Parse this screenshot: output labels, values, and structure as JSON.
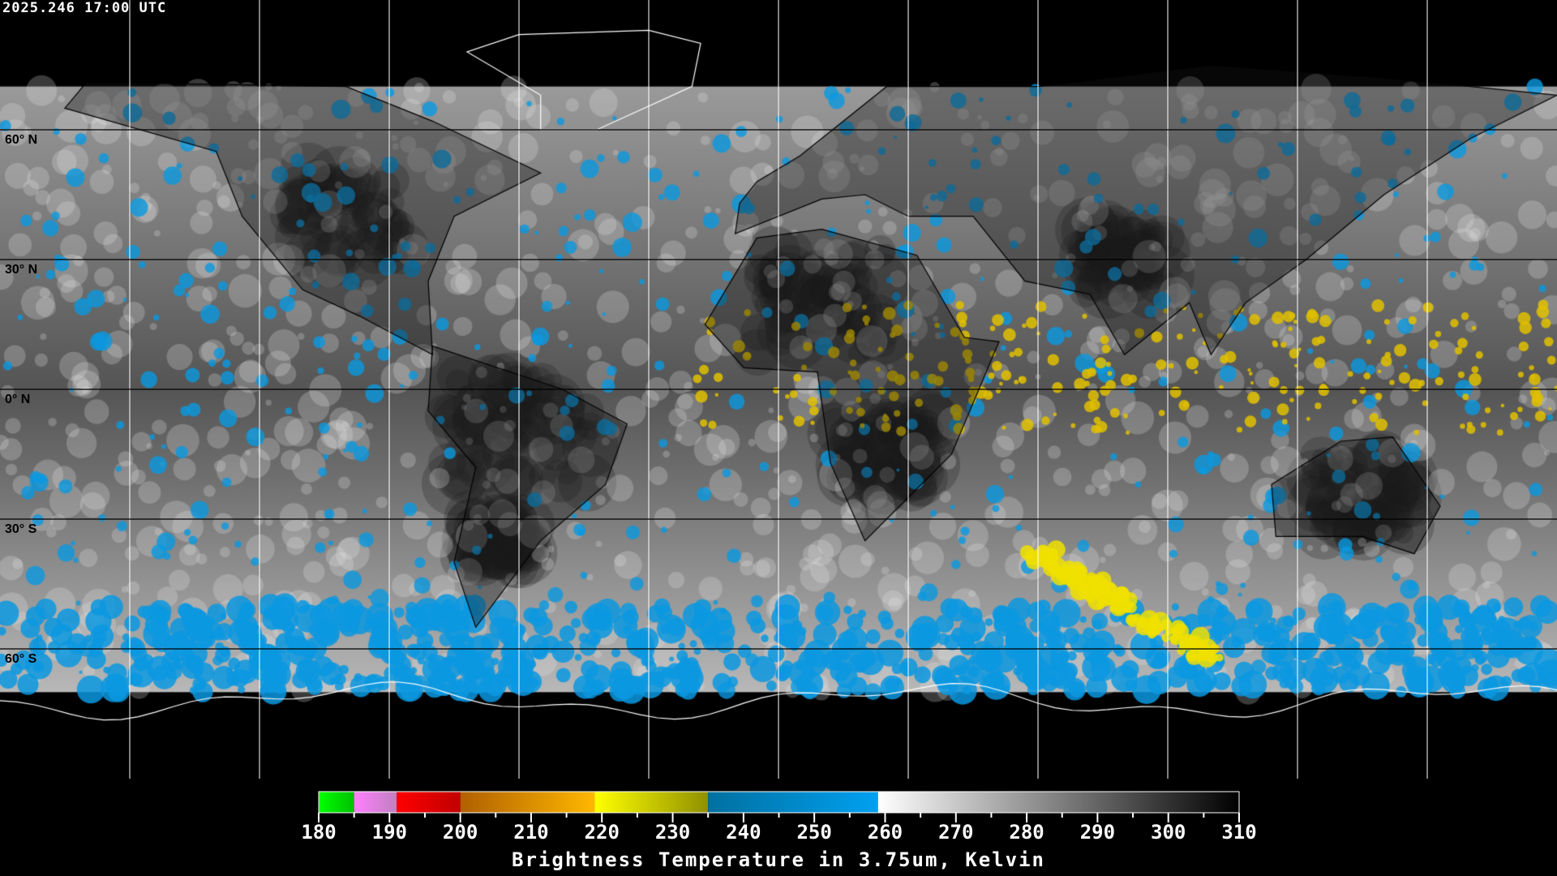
{
  "header": {
    "timestamp": "2025.246 17:00 UTC"
  },
  "map": {
    "projection": "equirectangular",
    "center_longitude": 0,
    "graticule_spacing_deg": 30,
    "lat_labels": [
      {
        "lat": 60,
        "text": "60° N"
      },
      {
        "lat": 30,
        "text": "30° N"
      },
      {
        "lat": 0,
        "text": "0° N"
      },
      {
        "lat": -30,
        "text": "30° S"
      },
      {
        "lat": -60,
        "text": "60° S"
      }
    ],
    "data_lat_range": [
      -70,
      70
    ]
  },
  "colorbar": {
    "title": "Brightness Temperature in 3.75um, Kelvin",
    "min": 180,
    "max": 310,
    "tick_step": 5,
    "labels": [
      "180",
      "190",
      "200",
      "210",
      "220",
      "230",
      "240",
      "250",
      "260",
      "270",
      "280",
      "290",
      "300",
      "310"
    ],
    "segments": [
      {
        "from": 180,
        "to": 185,
        "start": "#00ff00",
        "end": "#00c000"
      },
      {
        "from": 185,
        "to": 191,
        "start": "#ff80ff",
        "end": "#c080c0"
      },
      {
        "from": 191,
        "to": 200,
        "start": "#ff0000",
        "end": "#c00000"
      },
      {
        "from": 200,
        "to": 219,
        "start": "#b06000",
        "end": "#ffb800"
      },
      {
        "from": 219,
        "to": 235,
        "start": "#ffff00",
        "end": "#909000"
      },
      {
        "from": 235,
        "to": 259,
        "start": "#0070a0",
        "end": "#00a0f0"
      },
      {
        "from": 259,
        "to": 310,
        "start": "#ffffff",
        "end": "#000000"
      }
    ]
  }
}
